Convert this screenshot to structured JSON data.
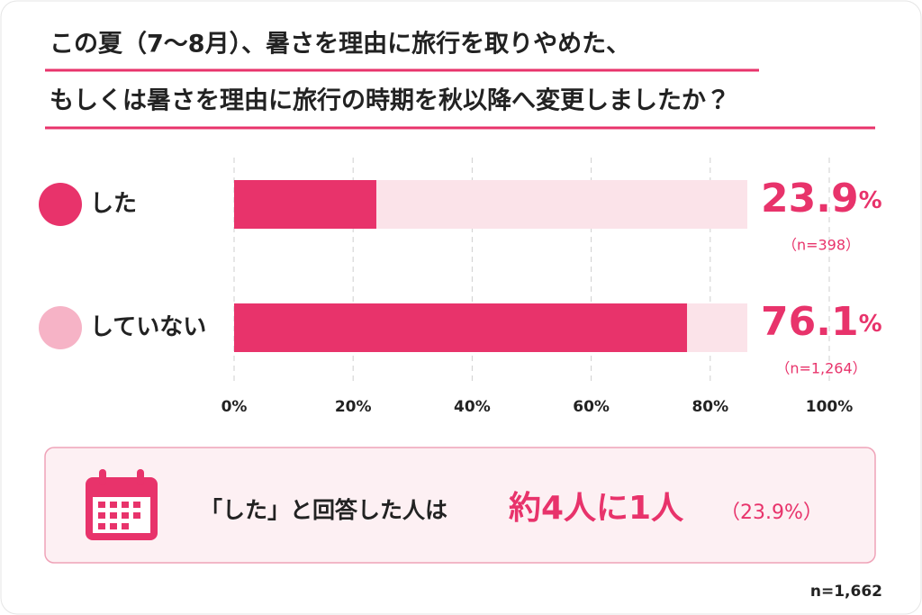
{
  "title_lines": [
    "この夏（7〜8月）、暑さを理由に旅行を取りやめた、",
    "もしくは暑さを理由に旅行の時期を秋以降へ変更しましたか？"
  ],
  "chart_data": {
    "type": "bar",
    "orientation": "horizontal",
    "categories": [
      "した",
      "していない"
    ],
    "category_colors": [
      "#e8336b",
      "#f6b3c6"
    ],
    "values": [
      23.9,
      76.1
    ],
    "value_labels": [
      "23.9%",
      "76.1%"
    ],
    "sample_labels": [
      "（n=398）",
      "（n=1,264）"
    ],
    "color": "#e8336b",
    "track_color": "#fbe3e9",
    "xlim": [
      0,
      100
    ],
    "xticks": [
      {
        "value": 0,
        "label": "0%"
      },
      {
        "value": 20,
        "label": "20%"
      },
      {
        "value": 40,
        "label": "40%"
      },
      {
        "value": 60,
        "label": "60%"
      },
      {
        "value": 80,
        "label": "80%"
      },
      {
        "value": 100,
        "label": "100%"
      }
    ],
    "grid": true
  },
  "callout": {
    "lead": "「した」と回答した人は",
    "emphasis": "約4人に1人",
    "detail": "（23.9%）"
  },
  "footnote": "n=1,662"
}
